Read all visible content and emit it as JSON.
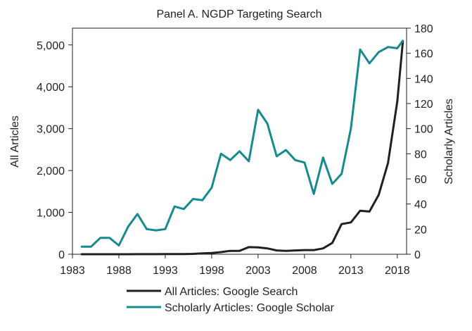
{
  "chart_data": {
    "type": "line",
    "title": "Panel A. NGDP Targeting Search",
    "xlabel": "",
    "ylabel": "All Articles",
    "y2label": "Scholarly Articles",
    "xlim": [
      1983,
      2019
    ],
    "ylim": [
      0,
      5400
    ],
    "y2lim": [
      0,
      180
    ],
    "xticks": [
      1983,
      1988,
      1993,
      1998,
      2003,
      2008,
      2013,
      2018
    ],
    "yticks": [
      0,
      1000,
      2000,
      3000,
      4000,
      5000
    ],
    "yticklabels": [
      "0",
      "1,000",
      "2,000",
      "3,000",
      "4,000",
      "5,000"
    ],
    "y2ticks": [
      0,
      20,
      40,
      60,
      80,
      100,
      120,
      140,
      160,
      180
    ],
    "legend_position": "bottom",
    "grid": false,
    "series": [
      {
        "name": "All Articles: Google Search",
        "axis": "left",
        "color": "#231f20",
        "x": [
          1984,
          1985,
          1986,
          1987,
          1988,
          1989,
          1990,
          1991,
          1992,
          1993,
          1994,
          1995,
          1996,
          1997,
          1998,
          1999,
          2000,
          2001,
          2002,
          2003,
          2004,
          2005,
          2006,
          2007,
          2008,
          2009,
          2010,
          2011,
          2012,
          2013,
          2014,
          2015,
          2016,
          2017,
          2018,
          2018.6
        ],
        "values": [
          0,
          0,
          0,
          0,
          0,
          0,
          2,
          2,
          2,
          3,
          5,
          5,
          8,
          20,
          30,
          50,
          80,
          80,
          170,
          165,
          140,
          90,
          80,
          90,
          100,
          100,
          140,
          270,
          720,
          760,
          1040,
          1020,
          1420,
          2180,
          3650,
          5080
        ]
      },
      {
        "name": "Scholarly Articles: Google Scholar",
        "axis": "right",
        "color": "#178a8e",
        "x": [
          1984,
          1985,
          1986,
          1987,
          1988,
          1989,
          1990,
          1991,
          1992,
          1993,
          1994,
          1995,
          1996,
          1997,
          1998,
          1999,
          2000,
          2001,
          2002,
          2003,
          2004,
          2005,
          2006,
          2007,
          2008,
          2009,
          2010,
          2011,
          2012,
          2013,
          2014,
          2015,
          2016,
          2017,
          2018,
          2018.6
        ],
        "values": [
          6,
          6,
          13,
          13,
          7,
          22,
          32,
          20,
          19,
          20,
          38,
          36,
          44,
          43,
          53,
          80,
          75,
          82,
          74,
          115,
          104,
          78,
          83,
          75,
          73,
          48,
          77,
          56,
          64,
          100,
          163,
          152,
          161,
          165,
          164,
          170
        ]
      }
    ]
  }
}
